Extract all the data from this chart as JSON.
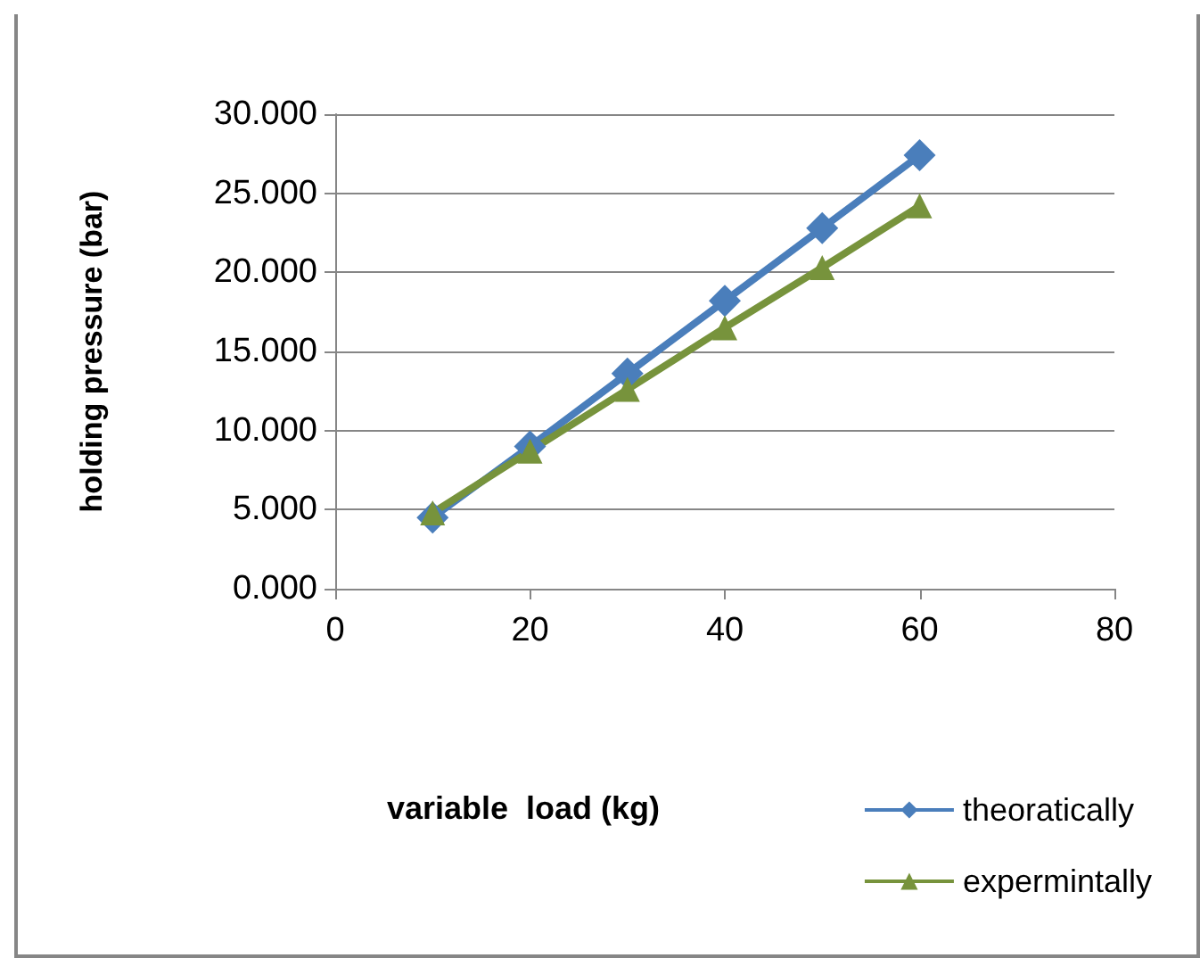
{
  "chart_data": {
    "type": "line",
    "xlabel": "variable  load (kg)",
    "ylabel": "holding pressure (bar)",
    "x": [
      10,
      20,
      30,
      40,
      50,
      60
    ],
    "series": [
      {
        "name": "theoratically",
        "color": "#4a7ebb",
        "marker": "diamond",
        "values": [
          4.5,
          9.0,
          13.6,
          18.2,
          22.8,
          27.4
        ]
      },
      {
        "name": "expermintally",
        "color": "#77933c",
        "marker": "triangle",
        "values": [
          4.8,
          8.7,
          12.6,
          16.5,
          20.3,
          24.2
        ]
      }
    ],
    "xlim": [
      0,
      80
    ],
    "xticks": [
      0,
      20,
      40,
      60,
      80
    ],
    "ylim": [
      0,
      30
    ],
    "yticks": [
      {
        "value": 0,
        "label": "0.000"
      },
      {
        "value": 5,
        "label": "5.000"
      },
      {
        "value": 10,
        "label": "10.000"
      },
      {
        "value": 15,
        "label": "15.000"
      },
      {
        "value": 20,
        "label": "20.000"
      },
      {
        "value": 25,
        "label": "25.000"
      },
      {
        "value": 30,
        "label": "30.000"
      }
    ],
    "grid": "y",
    "legend": "bottom right",
    "line_style": "solid"
  }
}
